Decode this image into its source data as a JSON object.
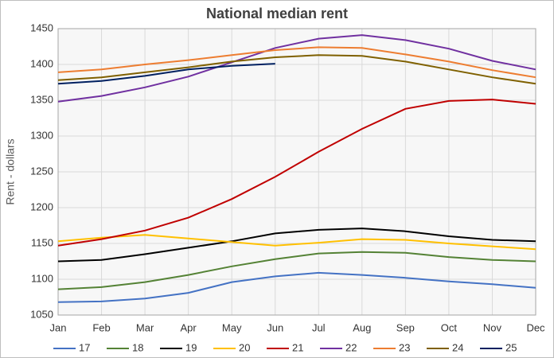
{
  "chart_data": {
    "type": "line",
    "title": "National median rent",
    "ylabel": "Rent - dollars",
    "categories": [
      "Jan",
      "Feb",
      "Mar",
      "Apr",
      "May",
      "Jun",
      "Jul",
      "Aug",
      "Sep",
      "Oct",
      "Nov",
      "Dec"
    ],
    "ylim": [
      1050,
      1450
    ],
    "yticks": [
      1050,
      1100,
      1150,
      1200,
      1250,
      1300,
      1350,
      1400,
      1450
    ],
    "grid": true,
    "legend": "bottom",
    "series": [
      {
        "name": "17",
        "color": "#4472c4",
        "values": [
          1068,
          1069,
          1073,
          1081,
          1096,
          1104,
          1109,
          1106,
          1102,
          1097,
          1093,
          1088
        ]
      },
      {
        "name": "18",
        "color": "#548235",
        "values": [
          1086,
          1089,
          1096,
          1106,
          1118,
          1128,
          1136,
          1138,
          1137,
          1131,
          1127,
          1125
        ]
      },
      {
        "name": "19",
        "color": "#000000",
        "values": [
          1125,
          1127,
          1135,
          1144,
          1153,
          1164,
          1169,
          1171,
          1167,
          1160,
          1155,
          1153
        ]
      },
      {
        "name": "20",
        "color": "#ffc000",
        "values": [
          1153,
          1158,
          1162,
          1157,
          1152,
          1147,
          1151,
          1156,
          1155,
          1150,
          1146,
          1142
        ]
      },
      {
        "name": "21",
        "color": "#c00000",
        "values": [
          1147,
          1156,
          1168,
          1186,
          1212,
          1243,
          1278,
          1310,
          1338,
          1349,
          1351,
          1345
        ]
      },
      {
        "name": "22",
        "color": "#7030a0",
        "values": [
          1348,
          1356,
          1368,
          1383,
          1403,
          1423,
          1436,
          1441,
          1434,
          1422,
          1405,
          1393
        ]
      },
      {
        "name": "23",
        "color": "#ed7d31",
        "values": [
          1389,
          1393,
          1400,
          1406,
          1413,
          1420,
          1424,
          1423,
          1414,
          1404,
          1392,
          1382
        ]
      },
      {
        "name": "24",
        "color": "#7f6000",
        "values": [
          1378,
          1382,
          1389,
          1396,
          1404,
          1410,
          1413,
          1412,
          1404,
          1393,
          1382,
          1373
        ]
      },
      {
        "name": "25",
        "color": "#002060",
        "values": [
          1373,
          1377,
          1384,
          1393,
          1398,
          1401,
          null,
          null,
          null,
          null,
          null,
          null
        ]
      }
    ]
  }
}
